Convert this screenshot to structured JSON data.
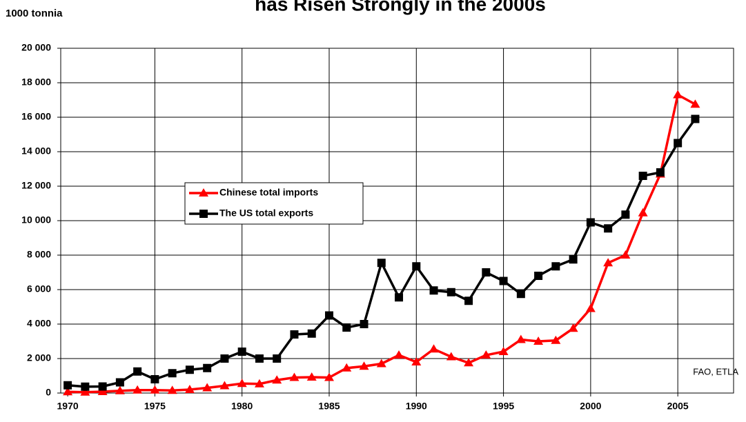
{
  "chart_data": {
    "type": "line",
    "title": "has Risen Strongly in the 2000s",
    "y_label": "1000 tonnia",
    "annotation": "FAO, ETLA",
    "x": [
      1970,
      1971,
      1972,
      1973,
      1974,
      1975,
      1976,
      1977,
      1978,
      1979,
      1980,
      1981,
      1982,
      1983,
      1984,
      1985,
      1986,
      1987,
      1988,
      1989,
      1990,
      1991,
      1992,
      1993,
      1994,
      1995,
      1996,
      1997,
      1998,
      1999,
      2000,
      2001,
      2002,
      2003,
      2004,
      2005,
      2006
    ],
    "series": [
      {
        "name": "Chinese total imports",
        "color": "#ff0000",
        "marker": "triangle",
        "values": [
          70,
          50,
          80,
          130,
          170,
          170,
          150,
          200,
          300,
          420,
          550,
          530,
          750,
          900,
          920,
          900,
          1450,
          1550,
          1700,
          2200,
          1800,
          2550,
          2100,
          1750,
          2200,
          2400,
          3100,
          3000,
          3050,
          3750,
          4900,
          7550,
          8000,
          10450,
          12700,
          17300,
          16750
        ]
      },
      {
        "name": "The US total exports",
        "color": "#000000",
        "marker": "square",
        "values": [
          450,
          370,
          380,
          620,
          1250,
          800,
          1150,
          1350,
          1450,
          2000,
          2400,
          2000,
          2000,
          3400,
          3450,
          4500,
          3800,
          4000,
          7550,
          5550,
          7350,
          5950,
          5850,
          5350,
          7000,
          6500,
          5750,
          6800,
          7350,
          7750,
          9900,
          9550,
          10350,
          12600,
          12800,
          14500,
          15900
        ]
      }
    ],
    "xlim": [
      1969.6,
      2008.2
    ],
    "xticks": [
      1970,
      1975,
      1980,
      1985,
      1990,
      1995,
      2000,
      2005
    ],
    "ylim": [
      0,
      20000
    ],
    "yticks": [
      0,
      {
        "value": 2000,
        "label": "2 000"
      },
      {
        "value": 4000,
        "label": "4 000"
      },
      {
        "value": 6000,
        "label": "6 000"
      },
      {
        "value": 8000,
        "label": "8 000"
      },
      {
        "value": 10000,
        "label": "10 000"
      },
      {
        "value": 12000,
        "label": "12 000"
      },
      {
        "value": 14000,
        "label": "14 000"
      },
      {
        "value": 16000,
        "label": "16 000"
      },
      {
        "value": 18000,
        "label": "18 000"
      },
      {
        "value": 20000,
        "label": "20 000"
      }
    ],
    "grid": true
  }
}
